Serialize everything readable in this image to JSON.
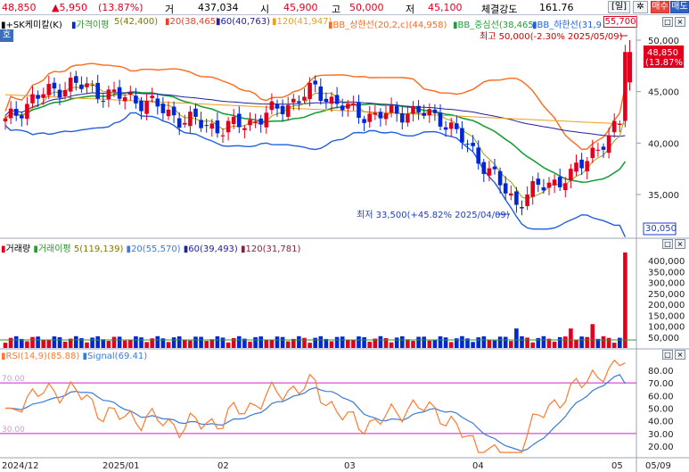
{
  "header": {
    "price": "48,850",
    "change": "▲5,950",
    "change_pct": "(13.87%)",
    "volume_label": "거",
    "volume": "437,034",
    "open_label": "시",
    "open": "45,900",
    "high_label": "고",
    "high": "50,000",
    "low_label": "저",
    "low": "45,100",
    "strength_label": "체결강도",
    "strength": "161.76",
    "period_label": "[일]",
    "settings_icon": "gear-icon",
    "buy_label": "매수",
    "sell_label": "매도"
  },
  "legend_price": {
    "stock": "+SK케미칼(K)",
    "ma_label": "가격이평",
    "ma5": "5(42,400)",
    "ma20": "20(38,465)",
    "ma60": "60(40,763)",
    "ma120": "120(41,947)",
    "bb_upper": "BB_상한선(20,2,c)(44,958)",
    "bb_mid": "BB_중심선(38,465)",
    "bb_lower": "BB_하한선(31,9",
    "last_price_box": "55,700",
    "ho_label": "호"
  },
  "annotations": {
    "high_note": "최고 50,000(-2.30% 2025/05/09)",
    "low_note": "최저 33,500(+45.82% 2025/04/09)",
    "current_price": "48,850",
    "current_pct": "(13.87%)",
    "min_price": "30,050"
  },
  "legend_volume": {
    "label": "거래량",
    "ma_label": "거래이평",
    "ma5": "5(119,139)",
    "ma20": "20(55,570)",
    "ma60": "60(39,493)",
    "ma120": "120(31,781)"
  },
  "legend_rsi": {
    "rsi": "RSI(14,9)(85.88)",
    "signal": "Signal(69.41)"
  },
  "axes": {
    "price_ticks": [
      "50,000",
      "45,000",
      "40,000",
      "35,000"
    ],
    "volume_ticks": [
      "400,000",
      "350,000",
      "300,000",
      "250,000",
      "200,000",
      "150,000",
      "100,000",
      "50,000"
    ],
    "rsi_ticks": [
      "80.00",
      "70.00",
      "60.00",
      "50.00",
      "40.00",
      "30.00",
      "20.00"
    ],
    "rsi_lines": [
      "70.00",
      "30.00"
    ],
    "x_labels": [
      "2024/12",
      "2025/01",
      "02",
      "03",
      "04",
      "05",
      "05/09"
    ]
  },
  "colors": {
    "up": "#e0001e",
    "down": "#0026d6",
    "ma5": "#a0a000",
    "ma20": "#e8402b",
    "ma60": "#2020a0",
    "ma120": "#e8a020",
    "bb_upper": "#ff6a1a",
    "bb_mid": "#1aa03a",
    "bb_lower": "#1f5fe0",
    "rsi": "#ff7a30",
    "signal": "#3a7ad8",
    "rsi_ref": "#d020d0"
  }
}
